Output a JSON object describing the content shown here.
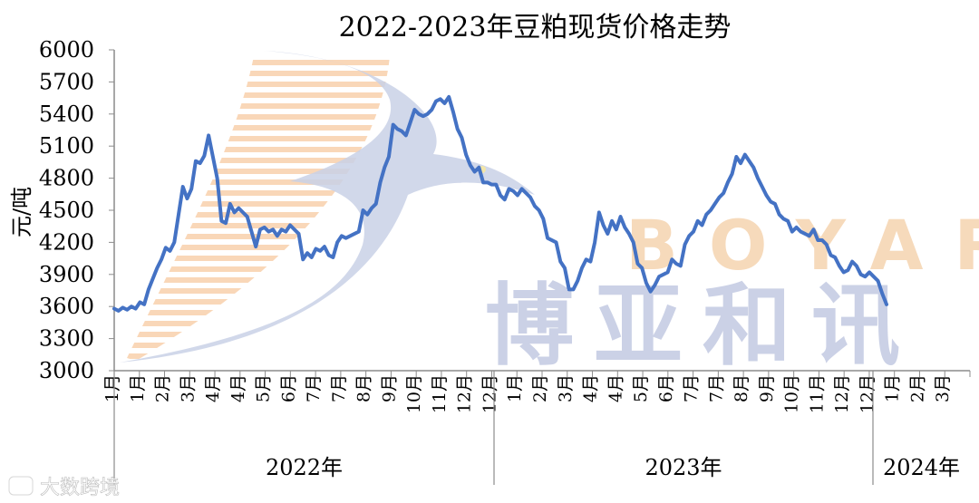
{
  "chart_data": {
    "type": "line",
    "title": "2022-2023年豆粕现货价格走势",
    "ylabel": "元/吨",
    "ylim": [
      3000,
      6000
    ],
    "yticks": [
      3000,
      3300,
      3600,
      3900,
      4200,
      4500,
      4800,
      5100,
      5400,
      5700,
      6000
    ],
    "grid": false,
    "line_color": "#4472C4",
    "x_tick_labels": [
      "1月",
      "1月",
      "2月",
      "3月",
      "4月",
      "4月",
      "5月",
      "6月",
      "7月",
      "7月",
      "8月",
      "9月",
      "10月",
      "11月",
      "12月",
      "12月",
      "1月",
      "2月",
      "3月",
      "4月",
      "4月",
      "5月",
      "6月",
      "7月",
      "7月",
      "8月",
      "9月",
      "10月",
      "11月",
      "12月",
      "12月",
      "1月",
      "2月",
      "3月"
    ],
    "year_groups": [
      {
        "label": "2022年"
      },
      {
        "label": "2023年"
      },
      {
        "label": "2024年"
      }
    ],
    "series": [
      {
        "values": [
          3580,
          3560,
          3590,
          3570,
          3600,
          3580,
          3640,
          3620,
          3760,
          3860,
          3960,
          4040,
          4150,
          4120,
          4200,
          4460,
          4720,
          4610,
          4700,
          4960,
          4940,
          5010,
          5200,
          5000,
          4800,
          4400,
          4380,
          4560,
          4480,
          4520,
          4480,
          4440,
          4300,
          4160,
          4320,
          4340,
          4300,
          4320,
          4260,
          4320,
          4300,
          4360,
          4320,
          4280,
          4040,
          4100,
          4060,
          4140,
          4120,
          4160,
          4080,
          4060,
          4200,
          4260,
          4240,
          4260,
          4280,
          4300,
          4500,
          4460,
          4520,
          4560,
          4760,
          4900,
          5000,
          5300,
          5260,
          5240,
          5200,
          5320,
          5440,
          5400,
          5380,
          5400,
          5440,
          5520,
          5540,
          5500,
          5560,
          5420,
          5260,
          5180,
          5020,
          4920,
          4860,
          4900,
          4760,
          4760,
          4740,
          4740,
          4640,
          4600,
          4700,
          4680,
          4640,
          4700,
          4660,
          4620,
          4540,
          4500,
          4420,
          4240,
          4220,
          4200,
          4020,
          3960,
          3760,
          3760,
          3840,
          3960,
          4040,
          4020,
          4200,
          4480,
          4360,
          4280,
          4400,
          4320,
          4440,
          4340,
          4280,
          4200,
          4000,
          3960,
          3820,
          3740,
          3800,
          3880,
          3900,
          3920,
          4040,
          4000,
          3980,
          4180,
          4260,
          4300,
          4400,
          4360,
          4460,
          4500,
          4560,
          4620,
          4660,
          4760,
          4840,
          5000,
          4940,
          5020,
          4960,
          4900,
          4800,
          4720,
          4640,
          4580,
          4560,
          4460,
          4420,
          4400,
          4300,
          4340,
          4300,
          4280,
          4260,
          4320,
          4220,
          4220,
          4180,
          4080,
          4060,
          3980,
          3920,
          3940,
          4020,
          3980,
          3900,
          3880,
          3920,
          3880,
          3840,
          3720,
          3620
        ]
      }
    ]
  },
  "watermarks": {
    "brand_latin": "BOYAR",
    "brand_cn": "博亚和讯",
    "badge": "大数跨境",
    "badge_icon": "camera-icon"
  }
}
